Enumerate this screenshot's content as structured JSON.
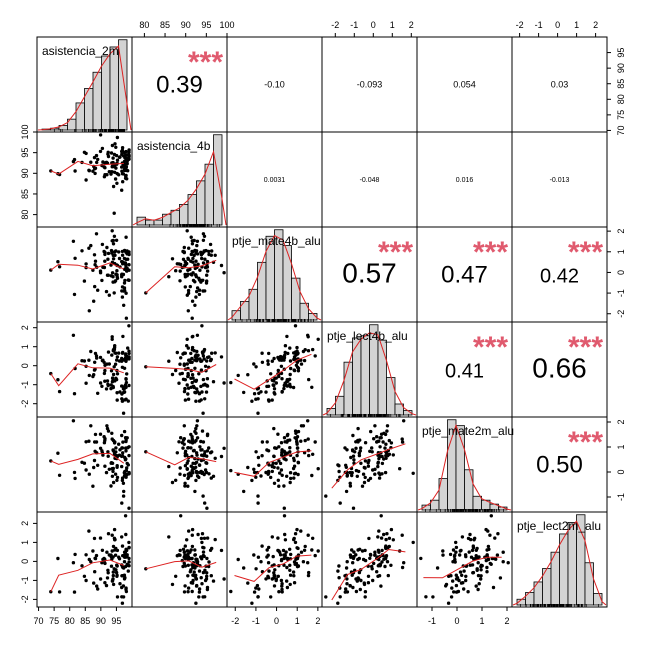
{
  "chart_data": {
    "type": "scatter-matrix",
    "variables": [
      "asistencia_2m",
      "asistencia_4b",
      "ptje_mate4b_alu",
      "ptje_lect4b_alu",
      "ptje_mate2m_alu",
      "ptje_lect2m_alu"
    ],
    "correlations": [
      {
        "row": 0,
        "col": 1,
        "label": "0.39",
        "value": 0.39,
        "stars": "***",
        "size": "large"
      },
      {
        "row": 0,
        "col": 2,
        "label": "-0.10",
        "value": -0.1,
        "stars": "",
        "size": "small"
      },
      {
        "row": 0,
        "col": 3,
        "label": "-0.093",
        "value": -0.093,
        "stars": "",
        "size": "small"
      },
      {
        "row": 0,
        "col": 4,
        "label": "0.054",
        "value": 0.054,
        "stars": "",
        "size": "small"
      },
      {
        "row": 0,
        "col": 5,
        "label": "0.03",
        "value": 0.03,
        "stars": "",
        "size": "small"
      },
      {
        "row": 1,
        "col": 2,
        "label": "0.0031",
        "value": 0.0031,
        "stars": "",
        "size": "tiny"
      },
      {
        "row": 1,
        "col": 3,
        "label": "-0.048",
        "value": -0.048,
        "stars": "",
        "size": "tiny"
      },
      {
        "row": 1,
        "col": 4,
        "label": "0.016",
        "value": 0.016,
        "stars": "",
        "size": "tiny"
      },
      {
        "row": 1,
        "col": 5,
        "label": "-0.013",
        "value": -0.013,
        "stars": "",
        "size": "tiny"
      },
      {
        "row": 2,
        "col": 3,
        "label": "0.57",
        "value": 0.57,
        "stars": "***",
        "size": "xlarge"
      },
      {
        "row": 2,
        "col": 4,
        "label": "0.47",
        "value": 0.47,
        "stars": "***",
        "size": "large"
      },
      {
        "row": 2,
        "col": 5,
        "label": "0.42",
        "value": 0.42,
        "stars": "***",
        "size": "medium"
      },
      {
        "row": 3,
        "col": 4,
        "label": "0.41",
        "value": 0.41,
        "stars": "***",
        "size": "medium"
      },
      {
        "row": 3,
        "col": 5,
        "label": "0.66",
        "value": 0.66,
        "stars": "***",
        "size": "xlarge"
      },
      {
        "row": 4,
        "col": 5,
        "label": "0.50",
        "value": 0.5,
        "stars": "***",
        "size": "large"
      }
    ],
    "axes": {
      "top": [
        {
          "col": 1,
          "ticks": [
            "80",
            "85",
            "90",
            "95",
            "100"
          ],
          "range": [
            77,
            100
          ]
        },
        {
          "col": 3,
          "ticks": [
            "-2",
            "-1",
            "0",
            "1",
            "2"
          ],
          "range": [
            -2.7,
            2.3
          ]
        },
        {
          "col": 5,
          "ticks": [
            "-2",
            "-1",
            "0",
            "1",
            "2"
          ],
          "range": [
            -2.4,
            2.6
          ]
        }
      ],
      "bottom": [
        {
          "col": 0,
          "ticks": [
            "70",
            "75",
            "80",
            "85",
            "90",
            "95"
          ],
          "range": [
            69.5,
            100
          ]
        },
        {
          "col": 2,
          "ticks": [
            "-2",
            "-1",
            "0",
            "1",
            "2"
          ],
          "range": [
            -2.4,
            2.2
          ]
        },
        {
          "col": 4,
          "ticks": [
            "-1",
            "0",
            "1",
            "2"
          ],
          "range": [
            -1.6,
            2.2
          ]
        }
      ],
      "left": [
        {
          "row": 1,
          "ticks": [
            "80",
            "85",
            "90",
            "95",
            "100"
          ],
          "range": [
            77,
            100
          ]
        },
        {
          "row": 3,
          "ticks": [
            "-2",
            "-1",
            "0",
            "1",
            "2"
          ],
          "range": [
            -2.7,
            2.3
          ]
        },
        {
          "row": 5,
          "ticks": [
            "-2",
            "-1",
            "0",
            "1",
            "2"
          ],
          "range": [
            -2.4,
            2.6
          ]
        }
      ],
      "right": [
        {
          "row": 0,
          "ticks": [
            "70",
            "75",
            "80",
            "85",
            "90",
            "95"
          ],
          "range": [
            69.5,
            100
          ]
        },
        {
          "row": 2,
          "ticks": [
            "-2",
            "-1",
            "0",
            "1",
            "2"
          ],
          "range": [
            -2.4,
            2.2
          ]
        },
        {
          "row": 4,
          "ticks": [
            "-1",
            "0",
            "1",
            "2"
          ],
          "range": [
            -1.6,
            2.2
          ]
        }
      ]
    },
    "histograms": [
      {
        "var": 0,
        "counts": [
          1,
          2,
          5,
          12,
          30,
          46,
          64,
          82,
          92,
          100
        ]
      },
      {
        "var": 1,
        "counts": [
          8,
          5,
          5,
          11,
          15,
          21,
          31,
          45,
          62,
          92
        ]
      },
      {
        "var": 2,
        "counts": [
          10,
          20,
          33,
          62,
          90,
          97,
          80,
          45,
          18,
          7
        ]
      },
      {
        "var": 3,
        "counts": [
          6,
          17,
          48,
          70,
          72,
          82,
          68,
          34,
          10,
          4
        ]
      },
      {
        "var": 4,
        "counts": [
          5,
          10,
          32,
          92,
          86,
          41,
          14,
          10,
          6,
          3
        ]
      },
      {
        "var": 5,
        "counts": [
          6,
          13,
          24,
          38,
          55,
          74,
          86,
          94,
          44,
          12
        ]
      }
    ],
    "colors": {
      "stars": "#e05a6e",
      "smooth": "#dd2222",
      "bars": "#d3d3d3",
      "points": "#000000"
    },
    "grid": false
  }
}
